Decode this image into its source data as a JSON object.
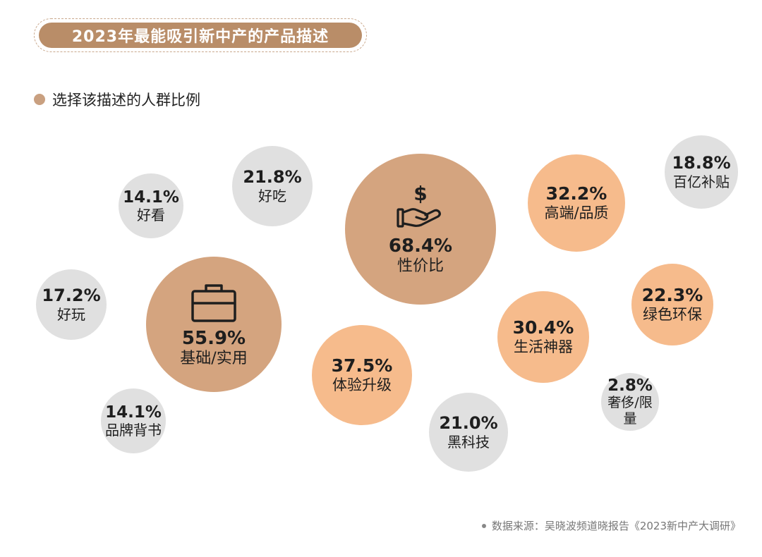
{
  "title": "2023年最能吸引新中产的产品描述",
  "legend_label": "选择该描述的人群比例",
  "source": "数据来源：吴晓波频道晓报告《2023新中产大调研》",
  "colors": {
    "large": "#d4a47f",
    "medium": "#f6bb8c",
    "small": "#e0e0e0",
    "accent": "#b98d68"
  },
  "chart_data": {
    "type": "bubble",
    "title": "2023年最能吸引新中产的产品描述",
    "series_label": "选择该描述的人群比例",
    "items": [
      {
        "label": "性价比",
        "value": 68.4,
        "display": "68.4%",
        "tier": "large",
        "icon": "money-hand-icon"
      },
      {
        "label": "基础/实用",
        "value": 55.9,
        "display": "55.9%",
        "tier": "large",
        "icon": "briefcase-icon"
      },
      {
        "label": "体验升级",
        "value": 37.5,
        "display": "37.5%",
        "tier": "medium"
      },
      {
        "label": "高端/品质",
        "value": 32.2,
        "display": "32.2%",
        "tier": "medium"
      },
      {
        "label": "生活神器",
        "value": 30.4,
        "display": "30.4%",
        "tier": "medium"
      },
      {
        "label": "绿色环保",
        "value": 22.3,
        "display": "22.3%",
        "tier": "medium"
      },
      {
        "label": "好吃",
        "value": 21.8,
        "display": "21.8%",
        "tier": "small"
      },
      {
        "label": "黑科技",
        "value": 21.0,
        "display": "21.0%",
        "tier": "small"
      },
      {
        "label": "百亿补贴",
        "value": 18.8,
        "display": "18.8%",
        "tier": "small"
      },
      {
        "label": "好玩",
        "value": 17.2,
        "display": "17.2%",
        "tier": "small"
      },
      {
        "label": "好看",
        "value": 14.1,
        "display": "14.1%",
        "tier": "small"
      },
      {
        "label": "品牌背书",
        "value": 14.1,
        "display": "14.1%",
        "tier": "small"
      },
      {
        "label": "奢侈/限量",
        "value": 2.8,
        "display": "2.8%",
        "tier": "small"
      }
    ]
  }
}
